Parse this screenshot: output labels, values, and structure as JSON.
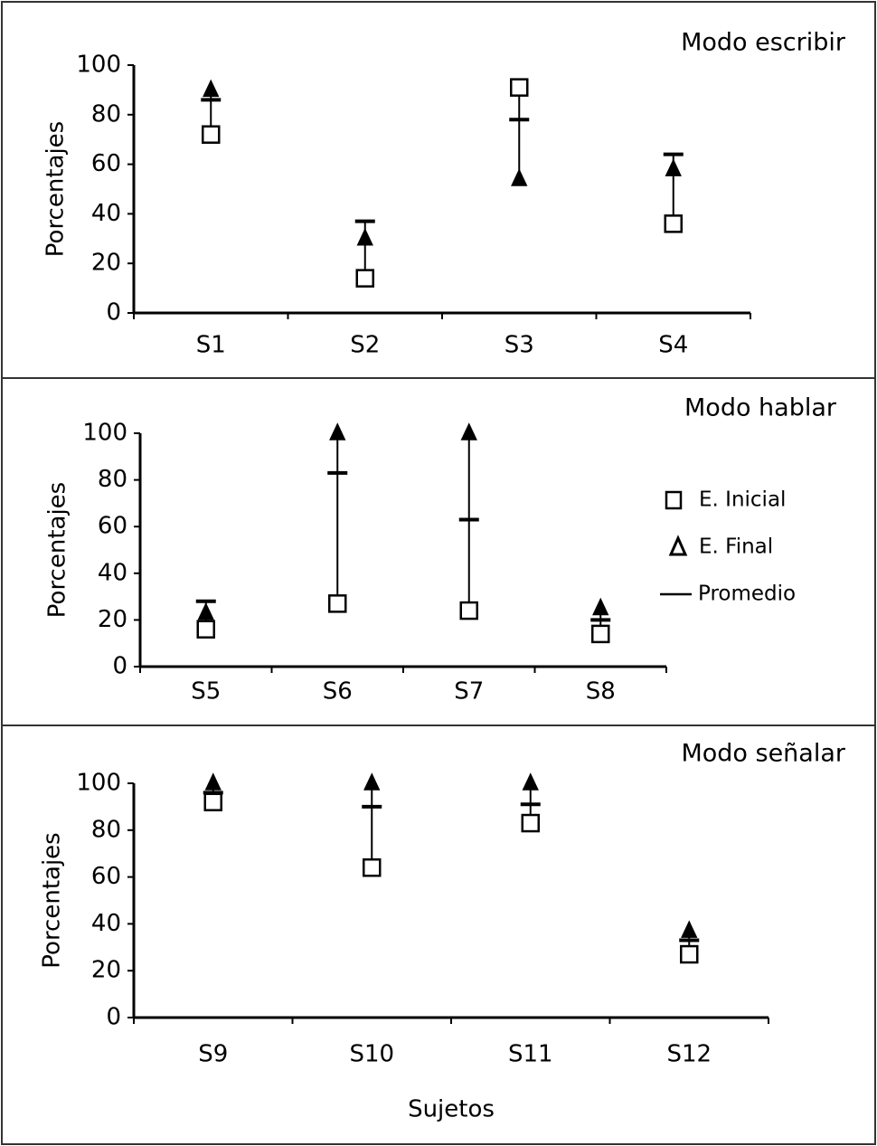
{
  "chart_data": [
    {
      "type": "range-dot",
      "title": "Modo escribir",
      "ylabel": "Porcentajes",
      "categories": [
        "S1",
        "S2",
        "S3",
        "S4"
      ],
      "series": [
        {
          "marker": "square",
          "color": "#000000",
          "values": [
            72,
            14,
            91,
            36
          ]
        },
        {
          "marker": "triangle",
          "color": "#000000",
          "values": [
            90,
            30,
            54,
            58
          ]
        },
        {
          "marker": "dash",
          "color": "#000000",
          "values": [
            86,
            37,
            78,
            64
          ]
        }
      ],
      "ylim": [
        0,
        100
      ],
      "yticks": [
        0,
        20,
        40,
        60,
        80,
        100
      ]
    },
    {
      "type": "range-dot",
      "title": "Modo hablar",
      "ylabel": "Porcentajes",
      "categories": [
        "S5",
        "S6",
        "S7",
        "S8"
      ],
      "series": [
        {
          "name": "E. Inicial",
          "marker": "square",
          "color": "#000000",
          "values": [
            16,
            27,
            24,
            14
          ]
        },
        {
          "name": "E. Final",
          "marker": "triangle",
          "color": "#000000",
          "values": [
            23,
            100,
            100,
            25
          ]
        },
        {
          "name": "Promedio",
          "marker": "dash",
          "color": "#000000",
          "values": [
            28,
            83,
            63,
            20
          ]
        }
      ],
      "ylim": [
        0,
        100
      ],
      "yticks": [
        0,
        20,
        40,
        60,
        80,
        100
      ],
      "legend": "right"
    },
    {
      "type": "range-dot",
      "title": "Modo señalar",
      "ylabel": "Porcentajes",
      "xlabel": "Sujetos",
      "categories": [
        "S9",
        "S10",
        "S11",
        "S12"
      ],
      "series": [
        {
          "marker": "square",
          "color": "#000000",
          "values": [
            92,
            64,
            83,
            27
          ]
        },
        {
          "marker": "triangle",
          "color": "#000000",
          "values": [
            100,
            100,
            100,
            37
          ]
        },
        {
          "marker": "dash",
          "color": "#000000",
          "values": [
            96,
            90,
            91,
            33
          ]
        }
      ],
      "ylim": [
        0,
        100
      ],
      "yticks": [
        0,
        20,
        40,
        60,
        80,
        100
      ]
    }
  ]
}
